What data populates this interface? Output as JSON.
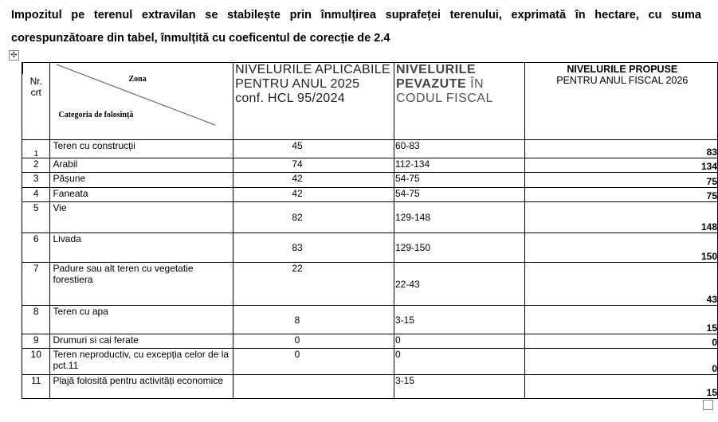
{
  "intro_text": "Impozitul pe terenul extravilan se stabilește prin înmulțirea suprafeței terenului, exprimată în hectare, cu suma corespunzătoare din tabel, înmulțită cu coeficentul de corecție de 2.4",
  "header": {
    "nr": "Nr. crt",
    "zona": "Zona",
    "categoria": "Categoria de folosință",
    "col3": "NIVELURILE APLICABILE PENTRU ANUL 2025 conf. HCL 95/2024",
    "col4_bold": "NIVELURILE PEVAZUTE",
    "col4_rest": " ÎN CODUL FISCAL",
    "col5_line1": "NIVELURILE  PROPUSE",
    "col5_line2": "PENTRU ANUL FISCAL 2026"
  },
  "rows": [
    {
      "nr": "1",
      "cat": "Teren cu construcții",
      "v2025": "45",
      "cod": "60-83",
      "v2026": "83"
    },
    {
      "nr": "2",
      "cat": "Arabil",
      "v2025": "74",
      "cod": "112-134",
      "v2026": "134"
    },
    {
      "nr": "3",
      "cat": "Pășune",
      "v2025": "42",
      "cod": "54-75",
      "v2026": "75"
    },
    {
      "nr": "4",
      "cat": "Faneata",
      "v2025": "42",
      "cod": "54-75",
      "v2026": "75"
    },
    {
      "nr": "5",
      "cat": "Vie",
      "v2025": "82",
      "cod": "129-148",
      "v2026": "148"
    },
    {
      "nr": "6",
      "cat": "Livada",
      "v2025": "83",
      "cod": "129-150",
      "v2026": "150"
    },
    {
      "nr": "7",
      "cat": "Padure  sau alt teren cu  vegetatie forestiera",
      "v2025": "22",
      "cod": "22-43",
      "v2026": "43"
    },
    {
      "nr": "8",
      "cat": "Teren cu apa",
      "v2025": "8",
      "cod": "3-15",
      "v2026": "15"
    },
    {
      "nr": "9",
      "cat": "Drumuri si cai ferate",
      "v2025": "0",
      "cod": "0",
      "v2026": "0"
    },
    {
      "nr": "10",
      "cat": "Teren neproductiv, cu excepția celor de la pct.11",
      "v2025": "0",
      "cod": "0",
      "v2026": "0"
    },
    {
      "nr": "11",
      "cat": "Plajă folosită pentru activități economice",
      "v2025": "",
      "cod": "3-15",
      "v2026": "15"
    }
  ]
}
